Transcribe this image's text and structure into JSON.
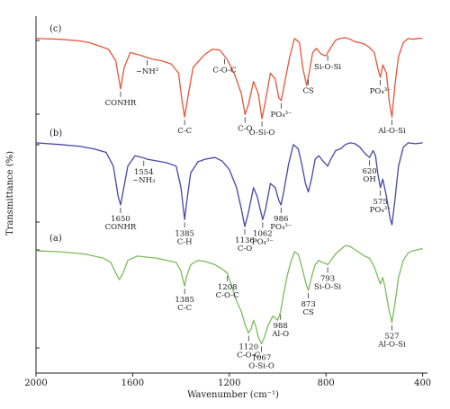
{
  "chart_data": {
    "type": "line",
    "xlabel": "Wavenumber (cm⁻¹)",
    "ylabel": "Transmittance (%)",
    "xlim": [
      2000,
      380
    ],
    "x_reversed": true,
    "xticks": [
      2000,
      1600,
      1200,
      800,
      400
    ],
    "yticks_labeled": false,
    "grid": false,
    "legend": "none",
    "series": [
      {
        "name": "(c)",
        "color": "#e8553a",
        "points": [
          [
            2000,
            0.97
          ],
          [
            1900,
            0.96
          ],
          [
            1820,
            0.94
          ],
          [
            1780,
            0.92
          ],
          [
            1740,
            0.88
          ],
          [
            1700,
            0.84
          ],
          [
            1670,
            0.7
          ],
          [
            1650,
            0.36
          ],
          [
            1635,
            0.62
          ],
          [
            1610,
            0.8
          ],
          [
            1560,
            0.76
          ],
          [
            1520,
            0.72
          ],
          [
            1480,
            0.7
          ],
          [
            1440,
            0.66
          ],
          [
            1410,
            0.55
          ],
          [
            1395,
            0.2
          ],
          [
            1385,
            0.02
          ],
          [
            1372,
            0.25
          ],
          [
            1350,
            0.62
          ],
          [
            1300,
            0.78
          ],
          [
            1270,
            0.84
          ],
          [
            1240,
            0.83
          ],
          [
            1210,
            0.72
          ],
          [
            1180,
            0.55
          ],
          [
            1150,
            0.3
          ],
          [
            1135,
            0.05
          ],
          [
            1120,
            0.18
          ],
          [
            1100,
            0.45
          ],
          [
            1080,
            0.3
          ],
          [
            1065,
            0.0
          ],
          [
            1050,
            0.22
          ],
          [
            1030,
            0.55
          ],
          [
            1010,
            0.48
          ],
          [
            995,
            0.25
          ],
          [
            985,
            0.22
          ],
          [
            970,
            0.45
          ],
          [
            950,
            0.75
          ],
          [
            930,
            0.97
          ],
          [
            910,
            0.92
          ],
          [
            895,
            0.6
          ],
          [
            880,
            0.4
          ],
          [
            870,
            0.55
          ],
          [
            855,
            0.8
          ],
          [
            840,
            0.85
          ],
          [
            820,
            0.78
          ],
          [
            800,
            0.76
          ],
          [
            780,
            0.86
          ],
          [
            760,
            0.95
          ],
          [
            740,
            0.97
          ],
          [
            720,
            0.98
          ],
          [
            700,
            0.96
          ],
          [
            680,
            0.93
          ],
          [
            660,
            0.92
          ],
          [
            640,
            0.9
          ],
          [
            620,
            0.86
          ],
          [
            600,
            0.8
          ],
          [
            585,
            0.6
          ],
          [
            575,
            0.5
          ],
          [
            565,
            0.65
          ],
          [
            550,
            0.55
          ],
          [
            538,
            0.2
          ],
          [
            527,
            0.02
          ],
          [
            515,
            0.4
          ],
          [
            500,
            0.75
          ],
          [
            480,
            0.92
          ],
          [
            460,
            0.97
          ],
          [
            440,
            0.96
          ],
          [
            420,
            0.97
          ],
          [
            400,
            0.97
          ]
        ]
      },
      {
        "name": "(b)",
        "color": "#4646a8",
        "points": [
          [
            2000,
            0.97
          ],
          [
            1900,
            0.95
          ],
          [
            1820,
            0.93
          ],
          [
            1760,
            0.9
          ],
          [
            1710,
            0.86
          ],
          [
            1680,
            0.7
          ],
          [
            1660,
            0.35
          ],
          [
            1650,
            0.25
          ],
          [
            1640,
            0.4
          ],
          [
            1620,
            0.7
          ],
          [
            1590,
            0.82
          ],
          [
            1560,
            0.8
          ],
          [
            1540,
            0.78
          ],
          [
            1500,
            0.76
          ],
          [
            1460,
            0.74
          ],
          [
            1420,
            0.7
          ],
          [
            1400,
            0.45
          ],
          [
            1390,
            0.2
          ],
          [
            1385,
            0.08
          ],
          [
            1378,
            0.25
          ],
          [
            1360,
            0.62
          ],
          [
            1330,
            0.75
          ],
          [
            1300,
            0.78
          ],
          [
            1260,
            0.8
          ],
          [
            1230,
            0.76
          ],
          [
            1200,
            0.66
          ],
          [
            1170,
            0.45
          ],
          [
            1150,
            0.2
          ],
          [
            1136,
            0.0
          ],
          [
            1122,
            0.15
          ],
          [
            1100,
            0.45
          ],
          [
            1085,
            0.35
          ],
          [
            1062,
            0.08
          ],
          [
            1050,
            0.2
          ],
          [
            1030,
            0.5
          ],
          [
            1010,
            0.45
          ],
          [
            995,
            0.3
          ],
          [
            986,
            0.25
          ],
          [
            975,
            0.4
          ],
          [
            955,
            0.72
          ],
          [
            935,
            0.95
          ],
          [
            915,
            0.9
          ],
          [
            900,
            0.72
          ],
          [
            885,
            0.5
          ],
          [
            873,
            0.4
          ],
          [
            860,
            0.55
          ],
          [
            845,
            0.78
          ],
          [
            830,
            0.82
          ],
          [
            810,
            0.75
          ],
          [
            793,
            0.7
          ],
          [
            780,
            0.78
          ],
          [
            760,
            0.88
          ],
          [
            740,
            0.9
          ],
          [
            720,
            0.95
          ],
          [
            700,
            0.97
          ],
          [
            680,
            0.96
          ],
          [
            660,
            0.92
          ],
          [
            640,
            0.85
          ],
          [
            620,
            0.8
          ],
          [
            605,
            0.88
          ],
          [
            595,
            0.82
          ],
          [
            585,
            0.6
          ],
          [
            575,
            0.45
          ],
          [
            565,
            0.55
          ],
          [
            550,
            0.35
          ],
          [
            535,
            0.1
          ],
          [
            527,
            0.02
          ],
          [
            515,
            0.3
          ],
          [
            500,
            0.7
          ],
          [
            480,
            0.92
          ],
          [
            460,
            0.97
          ],
          [
            430,
            0.96
          ],
          [
            400,
            0.97
          ]
        ]
      },
      {
        "name": "(a)",
        "color": "#7dbb5c",
        "points": [
          [
            2000,
            0.95
          ],
          [
            1900,
            0.94
          ],
          [
            1800,
            0.92
          ],
          [
            1720,
            0.88
          ],
          [
            1690,
            0.84
          ],
          [
            1670,
            0.74
          ],
          [
            1655,
            0.68
          ],
          [
            1640,
            0.74
          ],
          [
            1620,
            0.86
          ],
          [
            1580,
            0.9
          ],
          [
            1540,
            0.89
          ],
          [
            1500,
            0.88
          ],
          [
            1460,
            0.86
          ],
          [
            1420,
            0.84
          ],
          [
            1400,
            0.76
          ],
          [
            1390,
            0.66
          ],
          [
            1385,
            0.62
          ],
          [
            1378,
            0.7
          ],
          [
            1360,
            0.82
          ],
          [
            1330,
            0.86
          ],
          [
            1300,
            0.85
          ],
          [
            1260,
            0.82
          ],
          [
            1230,
            0.78
          ],
          [
            1208,
            0.74
          ],
          [
            1190,
            0.62
          ],
          [
            1170,
            0.48
          ],
          [
            1150,
            0.38
          ],
          [
            1135,
            0.26
          ],
          [
            1120,
            0.18
          ],
          [
            1110,
            0.22
          ],
          [
            1100,
            0.3
          ],
          [
            1090,
            0.24
          ],
          [
            1080,
            0.14
          ],
          [
            1067,
            0.08
          ],
          [
            1055,
            0.14
          ],
          [
            1040,
            0.25
          ],
          [
            1020,
            0.34
          ],
          [
            1000,
            0.3
          ],
          [
            988,
            0.38
          ],
          [
            975,
            0.55
          ],
          [
            960,
            0.72
          ],
          [
            945,
            0.85
          ],
          [
            930,
            0.94
          ],
          [
            915,
            0.92
          ],
          [
            900,
            0.8
          ],
          [
            885,
            0.66
          ],
          [
            873,
            0.58
          ],
          [
            860,
            0.7
          ],
          [
            845,
            0.82
          ],
          [
            830,
            0.86
          ],
          [
            815,
            0.84
          ],
          [
            800,
            0.83
          ],
          [
            793,
            0.82
          ],
          [
            780,
            0.86
          ],
          [
            760,
            0.92
          ],
          [
            740,
            0.96
          ],
          [
            720,
            1.0
          ],
          [
            700,
            0.99
          ],
          [
            680,
            0.96
          ],
          [
            660,
            0.93
          ],
          [
            640,
            0.9
          ],
          [
            620,
            0.88
          ],
          [
            600,
            0.8
          ],
          [
            585,
            0.7
          ],
          [
            575,
            0.64
          ],
          [
            565,
            0.7
          ],
          [
            555,
            0.6
          ],
          [
            540,
            0.4
          ],
          [
            527,
            0.28
          ],
          [
            515,
            0.45
          ],
          [
            500,
            0.7
          ],
          [
            480,
            0.86
          ],
          [
            460,
            0.93
          ],
          [
            440,
            0.95
          ],
          [
            420,
            0.96
          ],
          [
            400,
            0.97
          ]
        ]
      }
    ],
    "annotations": [
      {
        "series": "(c)",
        "x": 1650,
        "lines": [
          "CONHR"
        ],
        "side": "below"
      },
      {
        "series": "(c)",
        "x": 1540,
        "lines": [
          "~NH³"
        ],
        "side": "below"
      },
      {
        "series": "(c)",
        "x": 1385,
        "lines": [
          "C-C"
        ],
        "side": "below"
      },
      {
        "series": "(c)",
        "x": 1220,
        "lines": [
          "C-O-C"
        ],
        "side": "below"
      },
      {
        "series": "(c)",
        "x": 1135,
        "lines": [
          "C-O"
        ],
        "side": "below"
      },
      {
        "series": "(c)",
        "x": 1065,
        "lines": [
          "O-Si-O"
        ],
        "side": "below"
      },
      {
        "series": "(c)",
        "x": 985,
        "lines": [
          "PO₄³⁻"
        ],
        "side": "below"
      },
      {
        "series": "(c)",
        "x": 873,
        "lines": [
          "CS"
        ],
        "side": "below"
      },
      {
        "series": "(c)",
        "x": 793,
        "lines": [
          "Si-O-Si"
        ],
        "side": "below"
      },
      {
        "series": "(c)",
        "x": 575,
        "lines": [
          "PO₄³⁻"
        ],
        "side": "below"
      },
      {
        "series": "(c)",
        "x": 527,
        "lines": [
          "Al-O-Si"
        ],
        "side": "below"
      },
      {
        "series": "(b)",
        "x": 1650,
        "lines": [
          "1650",
          "CONHR"
        ],
        "side": "below"
      },
      {
        "series": "(b)",
        "x": 1554,
        "lines": [
          "1554",
          "~NH₃"
        ],
        "side": "below"
      },
      {
        "series": "(b)",
        "x": 1385,
        "lines": [
          "1385",
          "C-H"
        ],
        "side": "below"
      },
      {
        "series": "(b)",
        "x": 1136,
        "lines": [
          "1136",
          "C-O"
        ],
        "side": "below"
      },
      {
        "series": "(b)",
        "x": 1062,
        "lines": [
          "1062",
          "PO₄³⁻"
        ],
        "side": "below"
      },
      {
        "series": "(b)",
        "x": 986,
        "lines": [
          "986",
          "PO₄³⁻"
        ],
        "side": "below"
      },
      {
        "series": "(b)",
        "x": 620,
        "lines": [
          "620",
          "OH"
        ],
        "side": "below"
      },
      {
        "series": "(b)",
        "x": 575,
        "lines": [
          "575",
          "PO₄³⁻"
        ],
        "side": "below"
      },
      {
        "series": "(a)",
        "x": 1385,
        "lines": [
          "1385",
          "C-C"
        ],
        "side": "below"
      },
      {
        "series": "(a)",
        "x": 1208,
        "lines": [
          "1208",
          "C-O-C"
        ],
        "side": "below"
      },
      {
        "series": "(a)",
        "x": 1120,
        "lines": [
          "1120",
          "C-O-C"
        ],
        "side": "below"
      },
      {
        "series": "(a)",
        "x": 1067,
        "lines": [
          "1067",
          "O-Si-O"
        ],
        "side": "below"
      },
      {
        "series": "(a)",
        "x": 988,
        "lines": [
          "988",
          "Al-O"
        ],
        "side": "below"
      },
      {
        "series": "(a)",
        "x": 873,
        "lines": [
          "873",
          "CS"
        ],
        "side": "below"
      },
      {
        "series": "(a)",
        "x": 793,
        "lines": [
          "793",
          "Si-O-Si"
        ],
        "side": "below"
      },
      {
        "series": "(a)",
        "x": 527,
        "lines": [
          "527",
          "Al-O-Si"
        ],
        "side": "below"
      }
    ]
  }
}
